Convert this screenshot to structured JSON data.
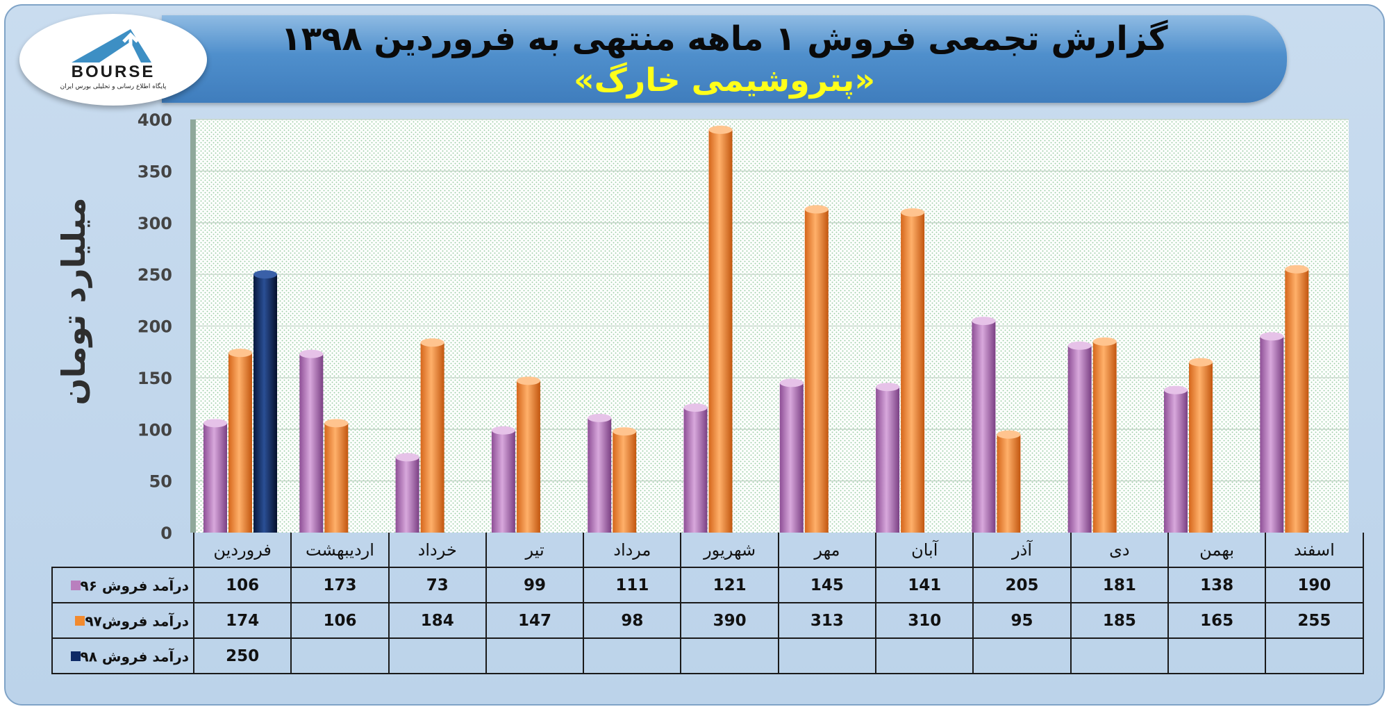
{
  "header": {
    "title": "گزارش تجمعی فروش ۱ ماهه منتهی به فروردین ۱۳۹۸",
    "subtitle": "«پتروشیمی خارگ»"
  },
  "logo": {
    "text": "BOURSE",
    "tagline": "پایگاه اطلاع رسانی و تحلیلی بورس ایران"
  },
  "colors": {
    "series_96": "#b97fbe",
    "series_97": "#f28a2e",
    "series_98": "#0e2a66"
  },
  "chart_data": {
    "type": "bar",
    "ylabel": "میلیارد تومان",
    "ylim": [
      0,
      400
    ],
    "yticks": [
      0,
      50,
      100,
      150,
      200,
      250,
      300,
      350,
      400
    ],
    "grid": true,
    "legend": "table",
    "categories": [
      "فروردین",
      "اردیبهشت",
      "خرداد",
      "تیر",
      "مرداد",
      "شهریور",
      "مهر",
      "آبان",
      "آذر",
      "دی",
      "بهمن",
      "اسفند"
    ],
    "series": [
      {
        "name": "درآمد فروش ۹۶",
        "values": [
          106,
          173,
          73,
          99,
          111,
          121,
          145,
          141,
          205,
          181,
          138,
          190
        ]
      },
      {
        "name": "درآمد فروش۹۷",
        "values": [
          174,
          106,
          184,
          147,
          98,
          390,
          313,
          310,
          95,
          185,
          165,
          255
        ]
      },
      {
        "name": "درآمد فروش ۹۸",
        "values": [
          250,
          null,
          null,
          null,
          null,
          null,
          null,
          null,
          null,
          null,
          null,
          null
        ]
      }
    ]
  }
}
